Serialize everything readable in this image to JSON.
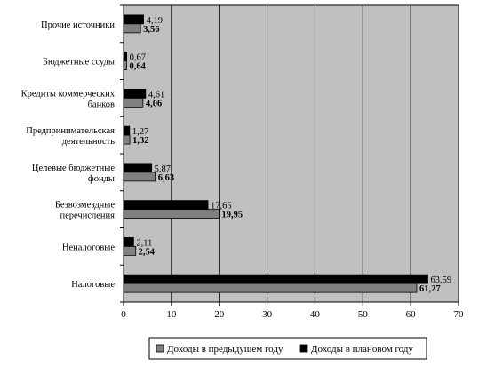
{
  "chart_data": {
    "type": "bar",
    "orientation": "horizontal",
    "categories": [
      [
        "Прочие источники"
      ],
      [
        "Бюджетные ссуды"
      ],
      [
        "Кредиты коммерческих",
        "банков"
      ],
      [
        "Предпринимательская",
        "деятельность"
      ],
      [
        "Целевые бюджетные",
        "фонды"
      ],
      [
        "Безвозмездные",
        "перечисления"
      ],
      [
        "Неналоговые"
      ],
      [
        "Налоговые"
      ]
    ],
    "series": [
      {
        "name": "Доходы в предыдущем году",
        "color": "#808080",
        "values": [
          3.56,
          0.64,
          4.06,
          1.32,
          6.63,
          19.95,
          2.54,
          61.27
        ],
        "labels": [
          "3,56",
          "0,64",
          "4,06",
          "1,32",
          "6,63",
          "19,95",
          "2,54",
          "61,27"
        ],
        "label_bold": true
      },
      {
        "name": "Доходы в плановом году",
        "color": "#000000",
        "values": [
          4.19,
          0.67,
          4.61,
          1.27,
          5.87,
          17.65,
          2.11,
          63.59
        ],
        "labels": [
          "4,19",
          "0,67",
          "4,61",
          "1,27",
          "5,87",
          "17,65",
          "2,11",
          "63,59"
        ],
        "label_bold": false
      }
    ],
    "xlim": [
      0,
      70
    ],
    "xticks": [
      0,
      10,
      20,
      30,
      40,
      50,
      60,
      70
    ],
    "grid": "vertical",
    "plot_background": "#c0c0c0",
    "legend_position": "bottom"
  }
}
